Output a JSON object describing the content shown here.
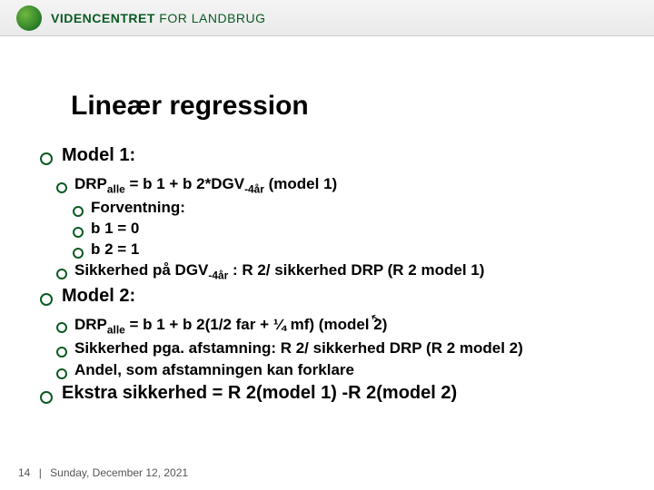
{
  "brand": {
    "strong": "VIDENCENTRET",
    "mid": " FOR ",
    "tail": "LANDBRUG"
  },
  "title": "Lineær regression",
  "model1": {
    "heading": "Model 1:",
    "eq_plain": "DRPalle = b 1  + b 2*DGV-4år (model 1)",
    "sub1": {
      "pre": "DRP",
      "sub": "alle",
      "mid": " = b 1  + b 2*DGV",
      "sub2": "-4år",
      "post": " (model 1)"
    },
    "forventning": "Forventning:",
    "b1": "b 1 = 0",
    "b2": "b 2 = 1",
    "sikkerhed": {
      "pre": "Sikkerhed på DGV",
      "sub": "-4år",
      "post": " : R 2/ sikkerhed DRP (R 2 model 1)"
    }
  },
  "model2": {
    "heading": "Model 2:",
    "eq": {
      "pre": "DRP",
      "sub": "alle",
      "post": " = b 1 + b 2(1/2 far + ¼ mf) (model 2)"
    },
    "sikkerhed": "Sikkerhed pga. afstamning: R 2/ sikkerhed DRP (R 2 model 2)",
    "andel": "Andel, som afstamningen kan forklare"
  },
  "ekstra": "Ekstra sikkerhed = R 2(model 1) -R 2(model 2)",
  "footer": {
    "page": "14",
    "sep": "|",
    "date": "Sunday, December 12, 2021"
  },
  "colors": {
    "accent": "#0a5a23",
    "text": "#000000",
    "footer": "#555555",
    "header_grad_top": "#f4f4f4",
    "header_grad_bot": "#eaeaea"
  },
  "fonts": {
    "title_pt": 30,
    "lvl1_pt": 20,
    "lvl2_pt": 17,
    "footer_pt": 12,
    "family": "Arial"
  }
}
